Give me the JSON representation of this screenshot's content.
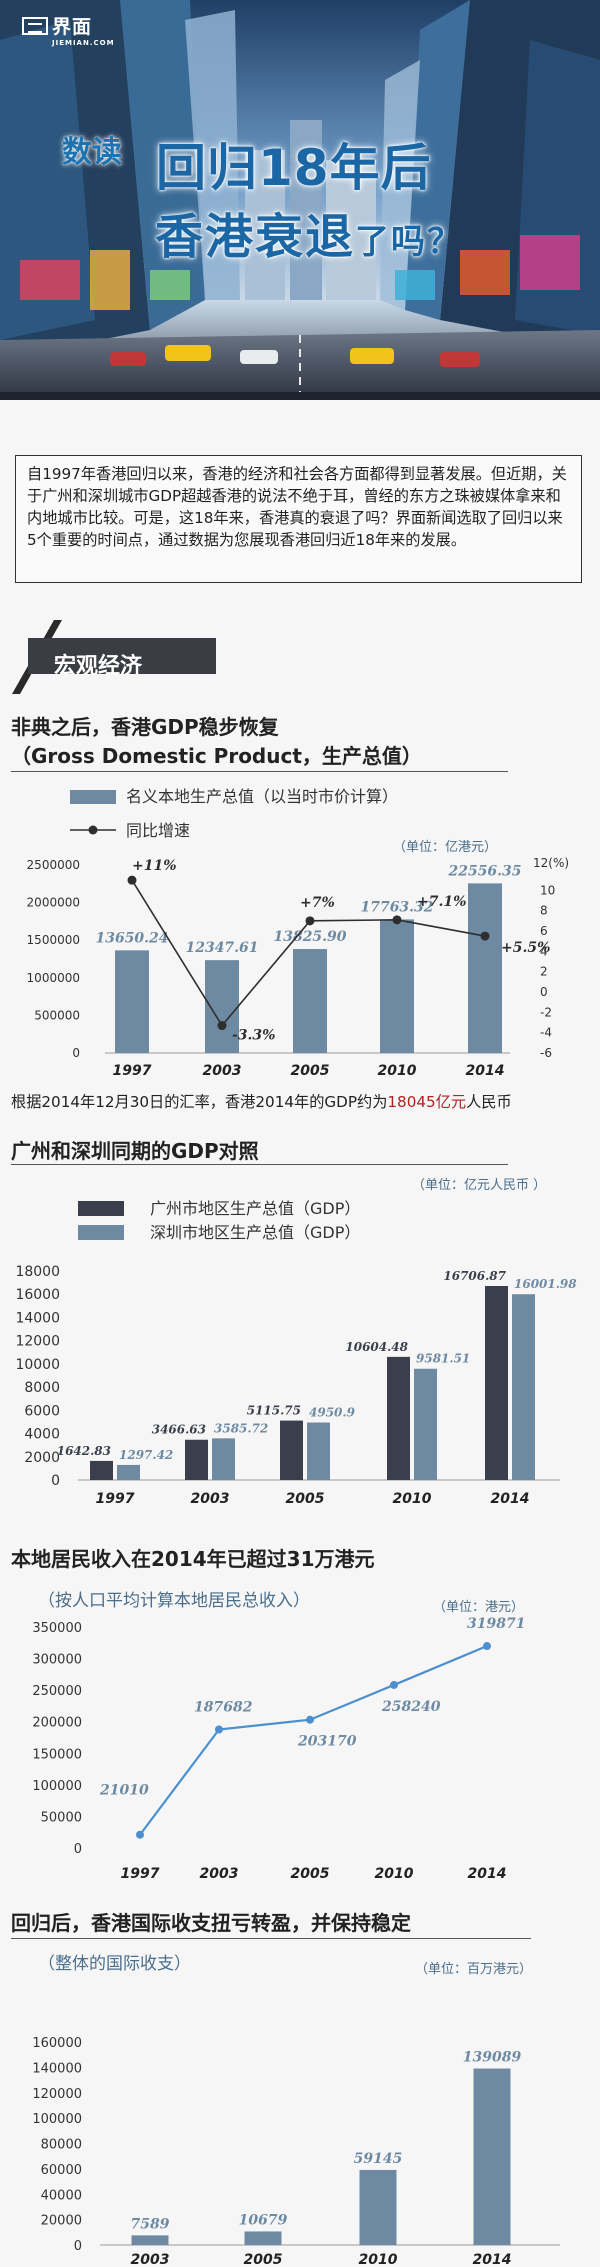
{
  "brand": {
    "name": "界面",
    "sub": "JIEMIAN.COM"
  },
  "hero": {
    "prefix": "数读",
    "line1": "回归18年后",
    "line2_a": "香港",
    "line2_b": "衰退",
    "line2_c": "了吗？"
  },
  "intro": "自1997年香港回归以来，香港的经济和社会各方面都得到显著发展。但近期，关于广州和深圳城市GDP超越香港的说法不绝于耳，曾经的东方之珠被媒体拿来和内地城市比较。可是，这18年来，香港真的衰退了吗？界面新闻选取了回归以来5个重要的时间点，通过数据为您展现香港回归近18年来的发展。",
  "section": {
    "title": "宏观经济"
  },
  "colors": {
    "steel": "#6e8aa3",
    "dark": "#3b3f4d",
    "line": "#4b8fcf",
    "red": "#b52121",
    "pointer": "#2e2e2e"
  },
  "gdp": {
    "heading": "非典之后，香港GDP稳步恢复",
    "subheading": "（Gross Domestic Product，生产总值）",
    "note_a": "根据2014年12月30日的汇率，香港2014年的GDP约为",
    "note_hl": "18045亿元",
    "note_b": "人民币"
  },
  "gz": {
    "heading": "广州和深圳同期的GDP对照"
  },
  "income": {
    "heading": "本地居民收入在2014年已超过31万港元"
  },
  "bop": {
    "heading": "回归后，香港国际收支扭亏转盈，并保持稳定"
  },
  "chart_data": [
    {
      "type": "bar",
      "title": "",
      "unit": "（单位：亿港元）",
      "right_unit": "12(%)",
      "categories": [
        "1997",
        "2003",
        "2005",
        "2010",
        "2014"
      ],
      "series": [
        {
          "name": "名义本地生产总值（以当时市价计算）",
          "values": [
            13650.24,
            12347.61,
            13825.9,
            17763.32,
            22556.35
          ],
          "labels": [
            "13650.24",
            "12347.61",
            "13825.90",
            "17763.32",
            "22556.35"
          ]
        },
        {
          "name": "同比增速",
          "type": "line",
          "axis": "right",
          "values": [
            11,
            -3.3,
            7,
            7.1,
            5.5
          ],
          "labels": [
            "+11%",
            "-3.3%",
            "+7%",
            "+7.1%",
            "+5.5%"
          ]
        }
      ],
      "ylim": [
        0,
        2500000
      ],
      "yticks": [
        "0",
        "500000",
        "1000000",
        "1500000",
        "2000000",
        "2500000"
      ],
      "y2lim": [
        -6,
        12
      ],
      "y2ticks": [
        "-6",
        "-4",
        "-2",
        "0",
        "2",
        "4",
        "6",
        "8",
        "10"
      ],
      "legend": "top-left",
      "grid": false
    },
    {
      "type": "bar",
      "title": "",
      "unit": "（单位：亿元人民币 ）",
      "categories": [
        "1997",
        "2003",
        "2005",
        "2010",
        "2014"
      ],
      "series": [
        {
          "name": "广州市地区生产总值（GDP）",
          "values": [
            1642.83,
            3466.63,
            5115.75,
            10604.48,
            16706.87
          ],
          "labels": [
            "1642.83",
            "3466.63",
            "5115.75",
            "10604.48",
            "16706.87"
          ]
        },
        {
          "name": "深圳市地区生产总值（GDP）",
          "values": [
            1297.42,
            3585.72,
            4950.9,
            9581.51,
            16001.98
          ],
          "labels": [
            "1297.42",
            "3585.72",
            "4950.9",
            "9581.51",
            "16001.98"
          ]
        }
      ],
      "ylim": [
        0,
        18000
      ],
      "yticks": [
        "0",
        "2000",
        "4000",
        "6000",
        "8000",
        "10000",
        "12000",
        "14000",
        "16000",
        "18000"
      ],
      "legend": "top-left",
      "grid": false
    },
    {
      "type": "line",
      "title": "",
      "subtitle": "（按人口平均计算本地居民总收入）",
      "unit": "（单位：港元）",
      "categories": [
        "1997",
        "2003",
        "2005",
        "2010",
        "2014"
      ],
      "series": [
        {
          "name": "",
          "values": [
            21010,
            187682,
            203170,
            258240,
            319871
          ],
          "labels": [
            "21010",
            "187682",
            "203170",
            "258240",
            "319871"
          ]
        }
      ],
      "ylim": [
        0,
        350000
      ],
      "yticks": [
        "0",
        "50000",
        "100000",
        "150000",
        "200000",
        "250000",
        "300000",
        "350000"
      ],
      "grid": false
    },
    {
      "type": "bar",
      "title": "",
      "subtitle": "（整体的国际收支）",
      "unit": "（单位：百万港元）",
      "categories": [
        "2003",
        "2005",
        "2010",
        "2014"
      ],
      "series": [
        {
          "name": "",
          "values": [
            7589,
            10679,
            59145,
            139089
          ],
          "labels": [
            "7589",
            "10679",
            "59145",
            "139089"
          ]
        }
      ],
      "ylim": [
        0,
        160000
      ],
      "yticks": [
        "0",
        "20000",
        "40000",
        "60000",
        "80000",
        "100000",
        "120000",
        "140000",
        "160000"
      ],
      "grid": false
    }
  ]
}
